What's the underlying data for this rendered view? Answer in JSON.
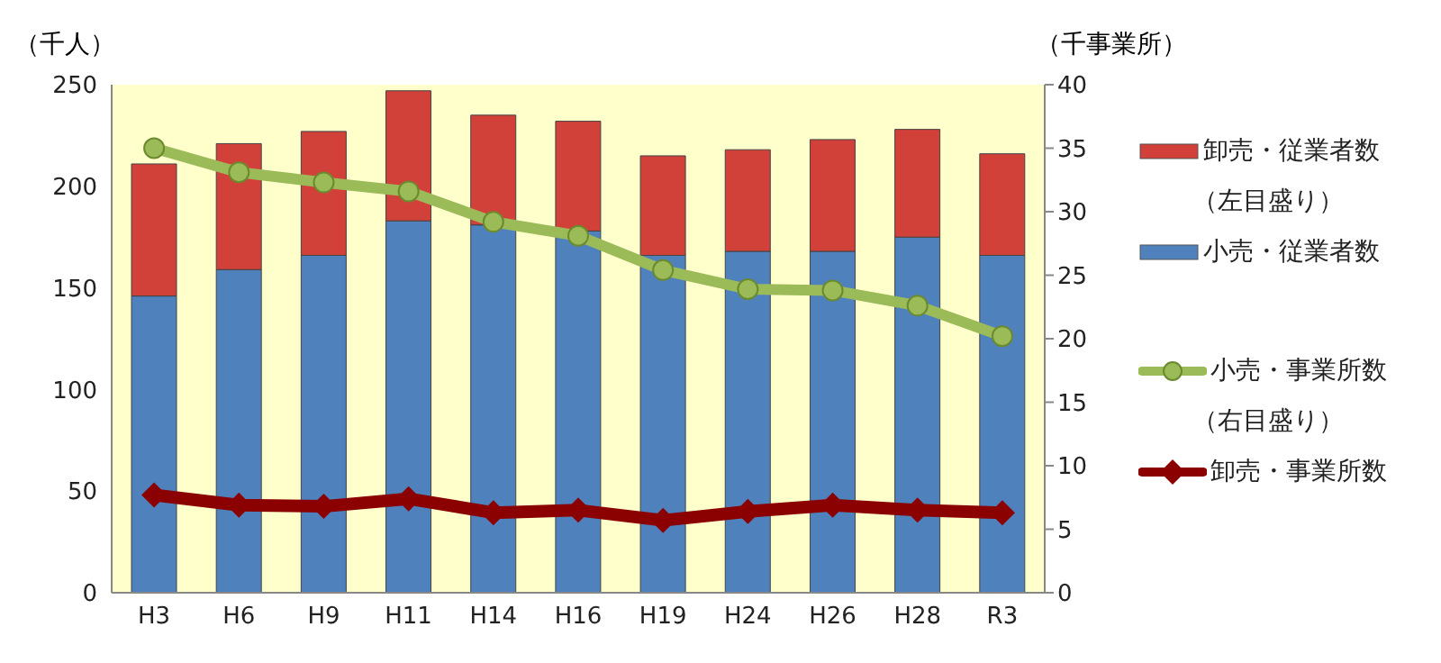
{
  "chart_data": {
    "type": "bar",
    "stacked": true,
    "ylabel": "（千人）",
    "y2label": "（千事業所）",
    "categories": [
      "H3",
      "H6",
      "H9",
      "H11",
      "H14",
      "H16",
      "H19",
      "H24",
      "H26",
      "H28",
      "R3"
    ],
    "series": [
      {
        "name": "小売・従業者数",
        "color": "#4f81bd",
        "values": [
          146,
          159,
          166,
          183,
          181,
          178,
          166,
          168,
          168,
          175,
          166
        ]
      },
      {
        "name": "卸売・従業者数",
        "color": "#d2403a",
        "values": [
          65,
          62,
          61,
          64,
          54,
          54,
          49,
          50,
          55,
          53,
          50
        ]
      },
      {
        "name": "小売・事業所数",
        "type": "line",
        "axis": "y2",
        "color": "#9bbb59",
        "marker": "circle",
        "values": [
          35.0,
          33.1,
          32.3,
          31.6,
          29.2,
          28.1,
          25.4,
          23.9,
          23.8,
          22.6,
          20.2
        ]
      },
      {
        "name": "卸売・事業所数",
        "type": "line",
        "axis": "y2",
        "color": "#8b0000",
        "marker": "diamond",
        "values": [
          7.7,
          6.9,
          6.8,
          7.4,
          6.3,
          6.5,
          5.7,
          6.4,
          6.9,
          6.5,
          6.3
        ]
      }
    ],
    "ylim": [
      0,
      250
    ],
    "yticks": [
      0,
      50,
      100,
      150,
      200,
      250
    ],
    "y2lim": [
      0,
      40
    ],
    "y2ticks": [
      0,
      5,
      10,
      15,
      20,
      25,
      30,
      35,
      40
    ],
    "legend": "right",
    "annotations": [
      "（左目盛り）",
      "（右目盛り）"
    ]
  }
}
